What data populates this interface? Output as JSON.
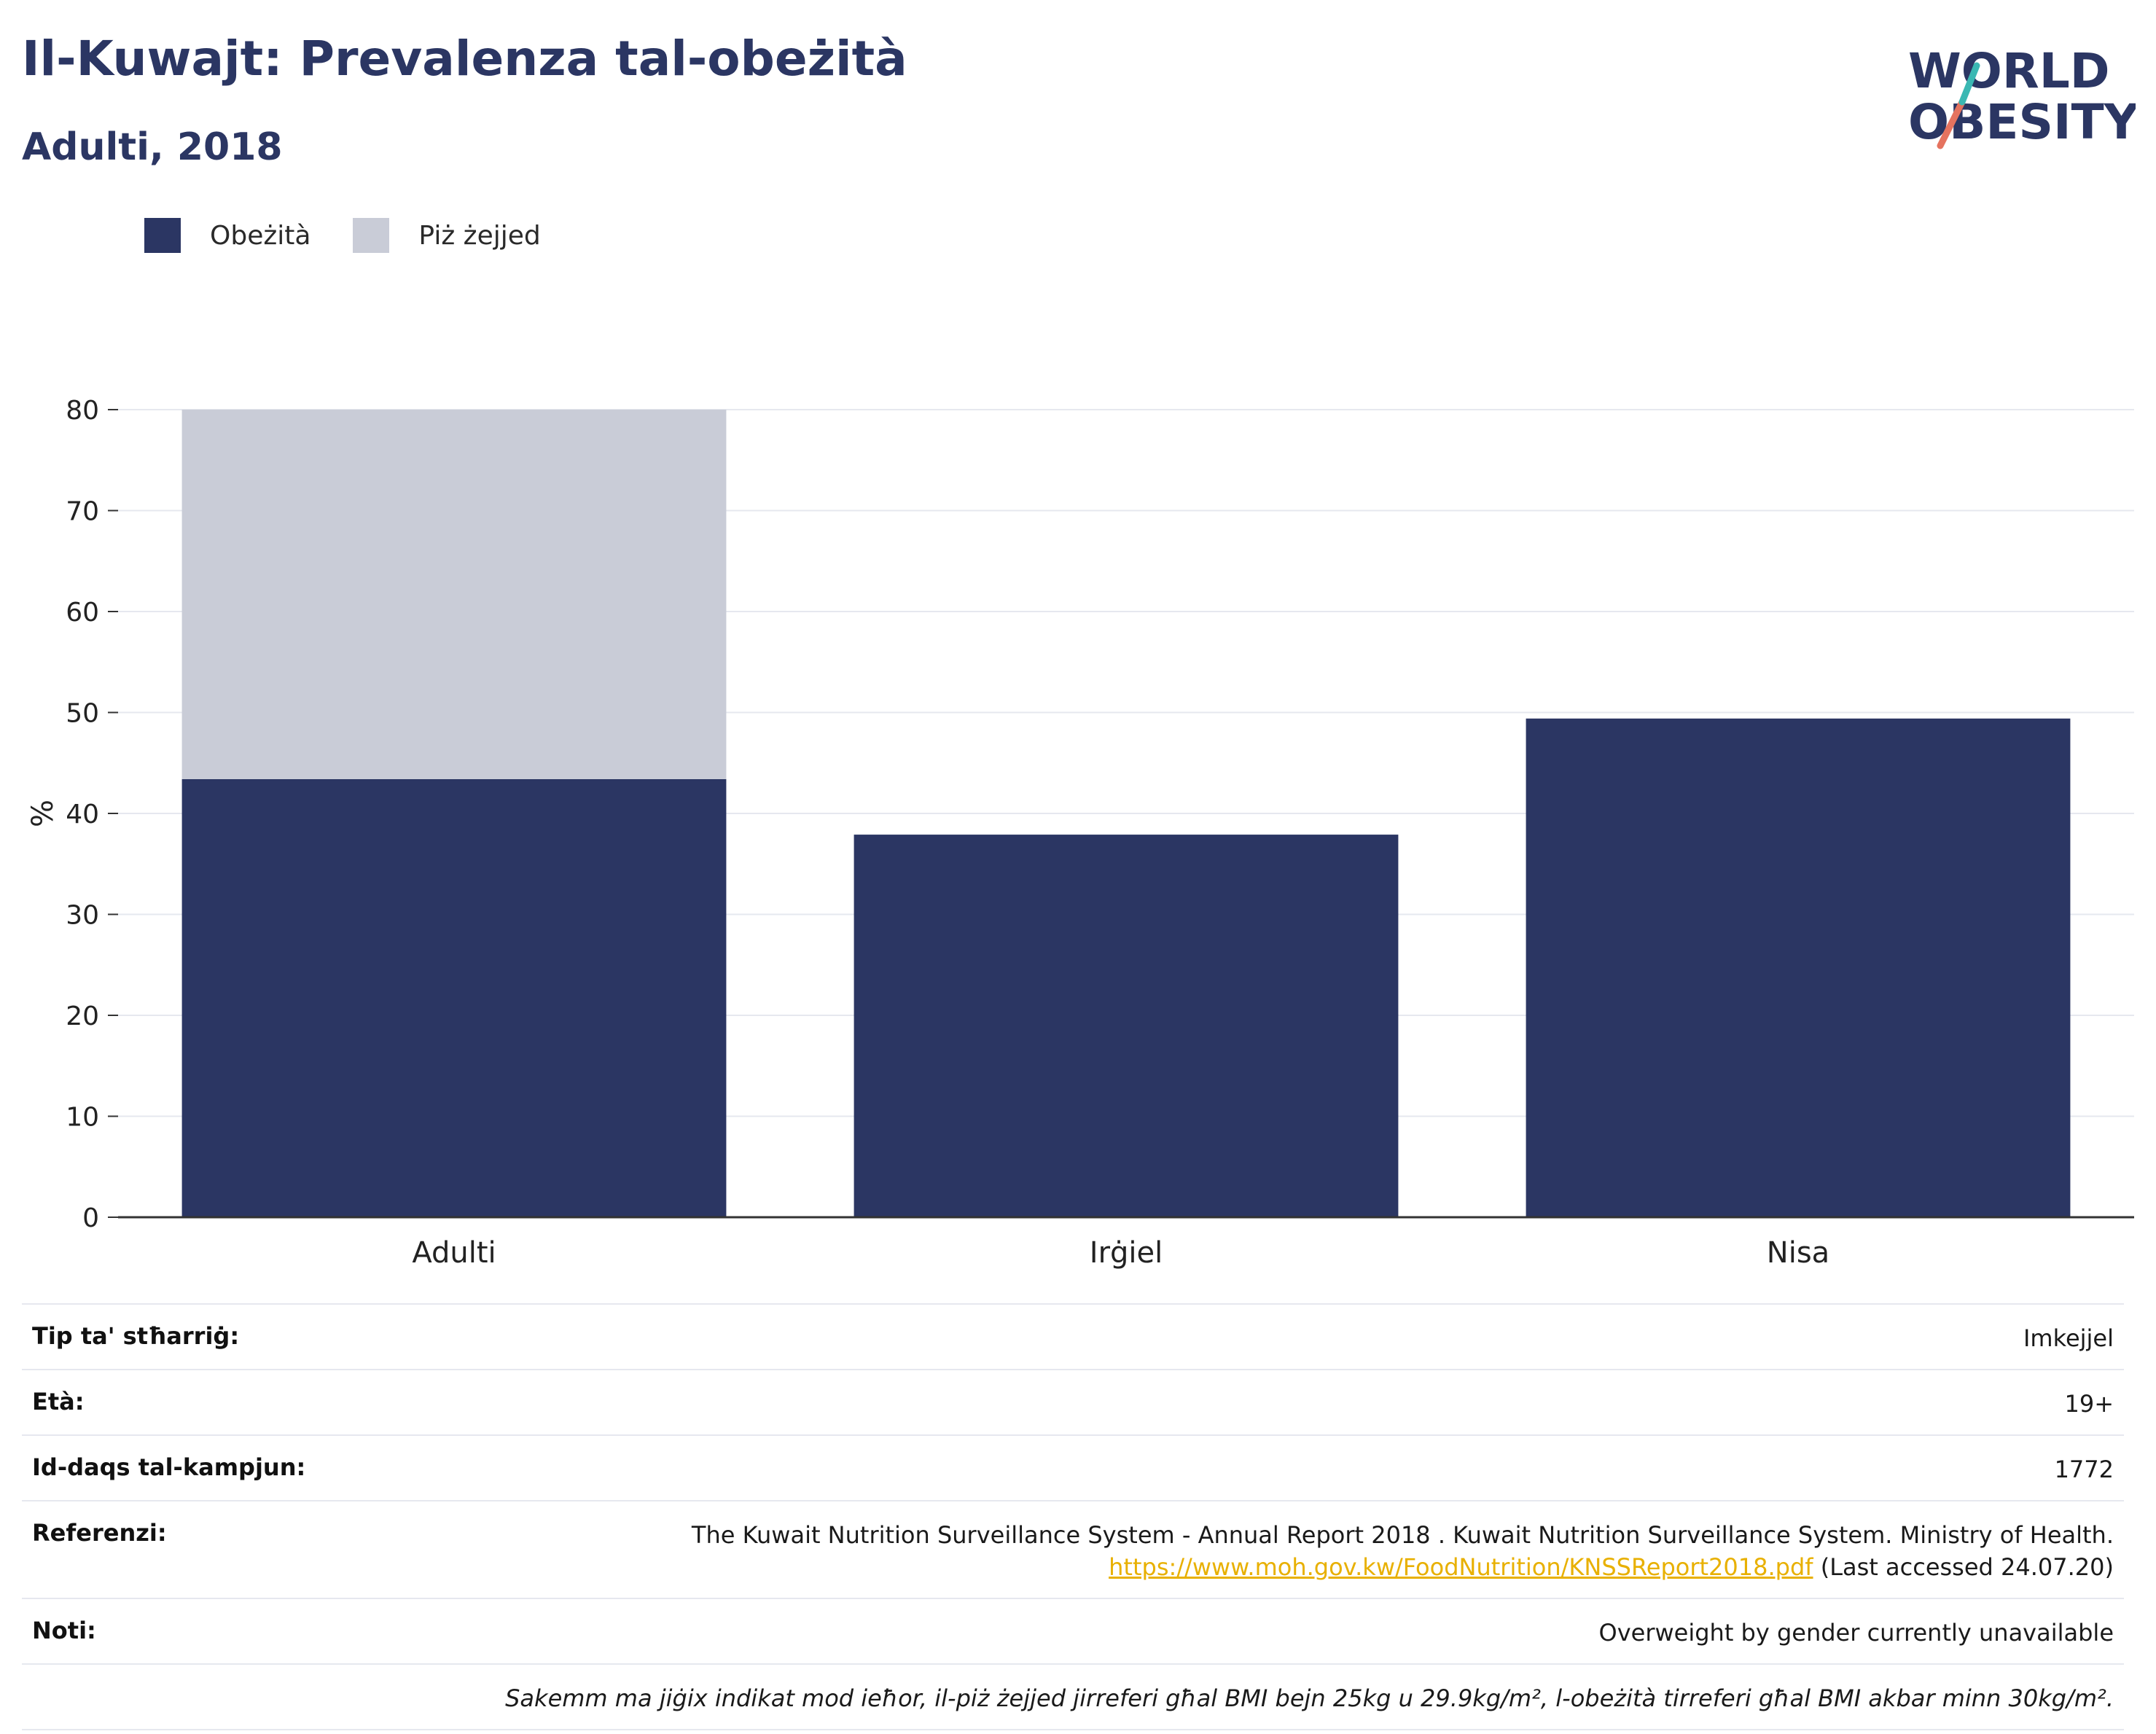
{
  "header": {
    "title": "Il-Kuwajt: Prevalenza tal-obeżità",
    "subtitle": "Adulti, 2018",
    "logo_line1": "WORLD",
    "logo_line2": "OBESITY"
  },
  "colors": {
    "obesity": "#2b3663",
    "overweight": "#c9ccd7",
    "logo_teal": "#3bb8b3",
    "logo_coral": "#e5735f",
    "link": "#e8b000"
  },
  "chart_data": {
    "type": "bar",
    "stacked": true,
    "categories": [
      "Adulti",
      "Irġiel",
      "Nisa"
    ],
    "series": [
      {
        "name": "Obeżità",
        "values": [
          43.4,
          37.9,
          49.4
        ]
      },
      {
        "name": "Piż żejjed",
        "values": [
          36.6,
          null,
          null
        ]
      }
    ],
    "ylabel": "%",
    "xlabel": "",
    "ylim": [
      0,
      80
    ],
    "yticks": [
      0,
      10,
      20,
      30,
      40,
      50,
      60,
      70,
      80
    ],
    "grid": true,
    "legend": "top-left"
  },
  "info": {
    "survey_type_label": "Tip ta' stħarriġ:",
    "survey_type_value": "Imkejjel",
    "age_label": "Età:",
    "age_value": "19+",
    "sample_label": "Id-daqs tal-kampjun:",
    "sample_value": "1772",
    "ref_label": "Referenzi:",
    "ref_text": "The Kuwait Nutrition Surveillance System - Annual Report 2018 . Kuwait Nutrition Surveillance System. Ministry of Health.",
    "ref_link": "https://www.moh.gov.kw/FoodNutrition/KNSSReport2018.pdf",
    "ref_accessed": "(Last accessed 24.07.20)",
    "notes_label": "Noti:",
    "notes_value": "Overweight by gender currently unavailable",
    "footnote": "Sakemm ma jiġix indikat mod ieħor, il-piż żejjed jirreferi għal BMI bejn 25kg u 29.9kg/m², l-obeżità tirreferi għal BMI akbar minn 30kg/m²."
  }
}
